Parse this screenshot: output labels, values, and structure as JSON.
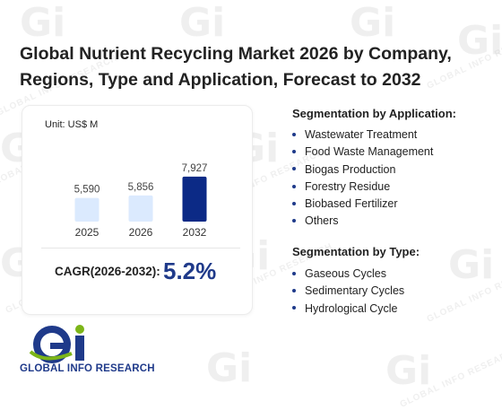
{
  "title": "Global Nutrient Recycling Market 2026 by Company, Regions, Type and Application, Forecast to 2032",
  "unit": "Unit: US$ M",
  "chart_data": {
    "type": "bar",
    "categories": [
      "2025",
      "2026",
      "2032"
    ],
    "values": [
      5590,
      5856,
      7927
    ],
    "value_labels": [
      "5,590",
      "5,856",
      "7,927"
    ],
    "bar_colors": [
      "#dbeafe",
      "#dbeafe",
      "#0c2a86"
    ],
    "title": "",
    "xlabel": "",
    "ylabel": "",
    "ylim": [
      0,
      8500
    ],
    "grid": false,
    "legend": "none"
  },
  "cagr": {
    "label": "CAGR(2026-2032):",
    "value": "5.2%"
  },
  "segments": {
    "application": {
      "title": "Segmentation by Application:",
      "items": [
        "Wastewater Treatment",
        "Food Waste Management",
        "Biogas Production",
        "Forestry Residue",
        "Biobased Fertilizer",
        "Others"
      ]
    },
    "type": {
      "title": "Segmentation by Type:",
      "items": [
        "Gaseous Cycles",
        "Sedimentary Cycles",
        "Hydrological Cycle"
      ]
    }
  },
  "brand": {
    "logo_text": "GLOBAL INFO RESEARCH",
    "watermark_text": "GLOBAL INFO RESEARCH",
    "colors": {
      "navy": "#1f3a8a",
      "green": "#7cb518",
      "light_bar": "#dbeafe",
      "dark_bar": "#0c2a86"
    }
  }
}
